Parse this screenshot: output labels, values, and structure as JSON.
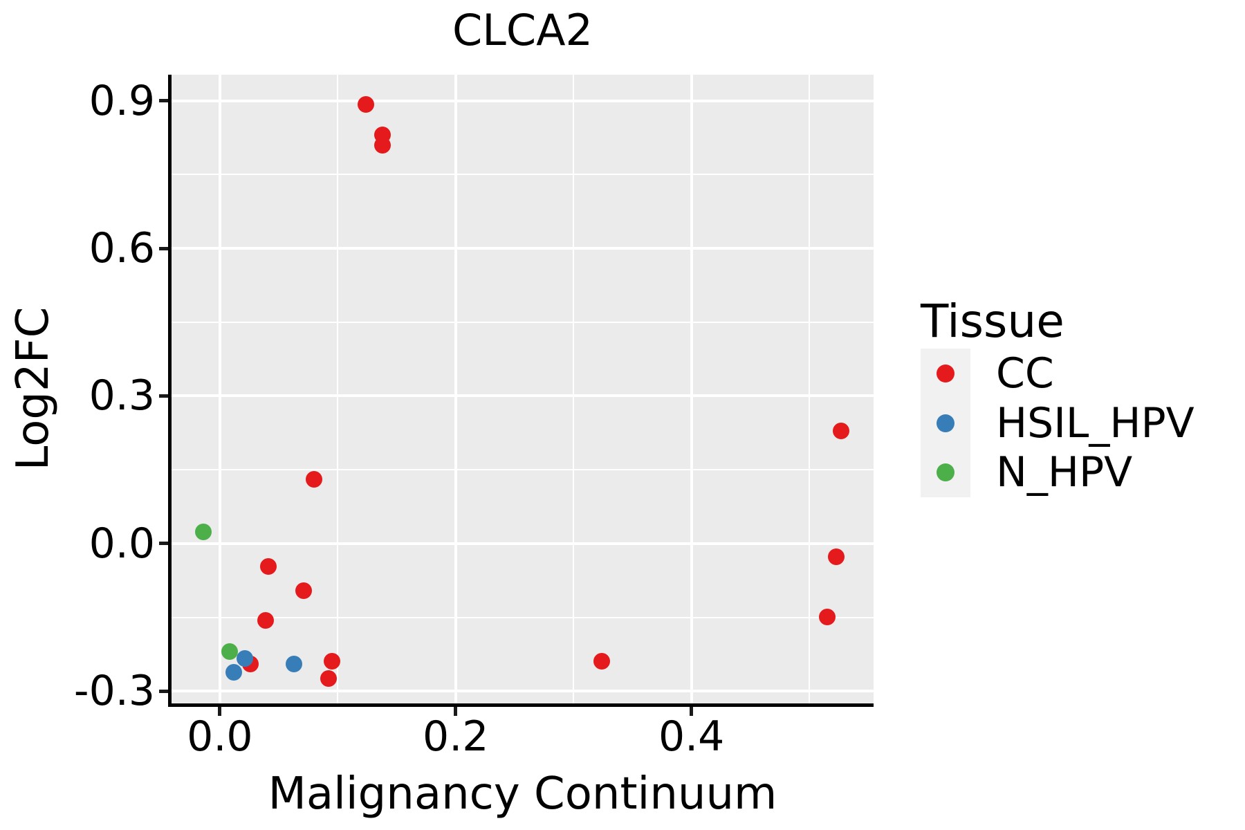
{
  "title": "CLCA2",
  "axes": {
    "x": {
      "label": "Malignancy Continuum",
      "tick_labels": [
        "0.0",
        "0.2",
        "0.4"
      ]
    },
    "y": {
      "label": "Log2FC",
      "tick_labels": [
        "-0.3",
        "0.0",
        "0.3",
        "0.6",
        "0.9"
      ]
    }
  },
  "legend": {
    "title": "Tissue",
    "items": [
      {
        "label": "CC",
        "color": "#E41A1C"
      },
      {
        "label": "HSIL_HPV",
        "color": "#377EB8"
      },
      {
        "label": "N_HPV",
        "color": "#4DAF4A"
      }
    ]
  },
  "colors": {
    "panel_background": "#EBEBEB",
    "gridline": "#FFFFFF",
    "axis_line": "#000000",
    "legend_key_background": "#F1F1F1",
    "cc_red": "#E41A1C",
    "hsil_hpv_blue": "#377EB8",
    "n_hpv_green": "#4DAF4A"
  },
  "chart_data": {
    "type": "scatter",
    "title": "CLCA2",
    "xlabel": "Malignancy Continuum",
    "ylabel": "Log2FC",
    "xlim": [
      -0.041,
      0.5545
    ],
    "ylim": [
      -0.3246,
      0.9527
    ],
    "x_major_ticks": [
      0.0,
      0.2,
      0.4
    ],
    "x_tick_labels": [
      "0.0",
      "0.2",
      "0.4"
    ],
    "x_minor_gridlines": [
      0.1,
      0.3,
      0.5
    ],
    "y_major_ticks": [
      0.9,
      0.6,
      0.3,
      0.0,
      -0.3
    ],
    "y_tick_labels": [
      "0.9",
      "0.6",
      "0.3",
      "0.0",
      "-0.3"
    ],
    "y_minor_gridlines": [
      0.75,
      0.45,
      0.15,
      -0.15
    ],
    "grid": true,
    "legend_title": "Tissue",
    "legend_position": "right",
    "series": [
      {
        "name": "CC",
        "color": "#E41A1C",
        "points": [
          [
            0.124,
            0.892
          ],
          [
            0.138,
            0.83
          ],
          [
            0.138,
            0.809
          ],
          [
            0.08,
            0.131
          ],
          [
            0.041,
            -0.046
          ],
          [
            0.071,
            -0.096
          ],
          [
            0.039,
            -0.156
          ],
          [
            0.026,
            -0.244
          ],
          [
            0.095,
            -0.239
          ],
          [
            0.092,
            -0.274
          ],
          [
            0.324,
            -0.239
          ],
          [
            0.527,
            0.229
          ],
          [
            0.523,
            -0.027
          ],
          [
            0.515,
            -0.149
          ]
        ]
      },
      {
        "name": "HSIL_HPV",
        "color": "#377EB8",
        "points": [
          [
            0.021,
            -0.233
          ],
          [
            0.012,
            -0.261
          ],
          [
            0.063,
            -0.244
          ]
        ]
      },
      {
        "name": "N_HPV",
        "color": "#4DAF4A",
        "points": [
          [
            -0.014,
            0.024
          ],
          [
            0.008,
            -0.219
          ]
        ]
      }
    ]
  }
}
